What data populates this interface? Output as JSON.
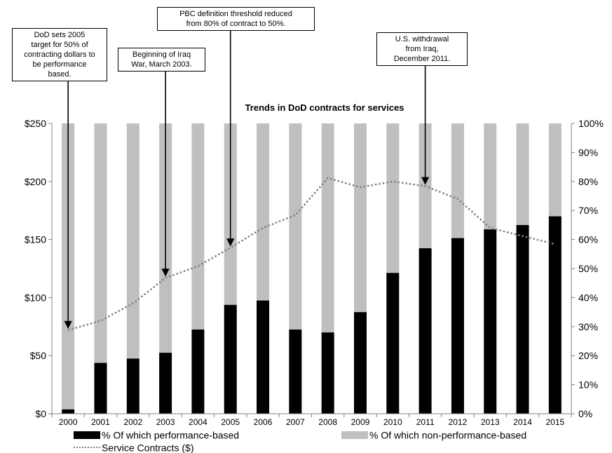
{
  "chart_data": {
    "type": "bar",
    "title": "Trends in DoD contracts for services",
    "categories": [
      "2000",
      "2001",
      "2002",
      "2003",
      "2004",
      "2005",
      "2006",
      "2007",
      "2008",
      "2009",
      "2010",
      "2011",
      "2012",
      "2013",
      "2014",
      "2015"
    ],
    "stacked_percent": true,
    "series": [
      {
        "name": "% Of which performance-based",
        "axis": "right",
        "color": "#000000",
        "values": [
          1.5,
          17.5,
          19,
          21,
          29,
          37.5,
          39,
          29,
          28,
          35,
          48.5,
          57,
          60.5,
          63.5,
          65,
          68
        ]
      },
      {
        "name": "% Of which non-performance-based",
        "axis": "right",
        "color": "#bfbfbf",
        "values": [
          98.5,
          82.5,
          81,
          79,
          71,
          62.5,
          61,
          71,
          72,
          65,
          51.5,
          43,
          39.5,
          36.5,
          35,
          32
        ]
      },
      {
        "name": "Service Contracts ($)",
        "axis": "left",
        "type": "line",
        "style": "dotted",
        "color": "#808080",
        "values": [
          72,
          80,
          95,
          117,
          127,
          143,
          160,
          171,
          203,
          195,
          200,
          196,
          185,
          160,
          153,
          146
        ]
      }
    ],
    "yaxis_left": {
      "ticks": [
        "$0",
        "$50",
        "$100",
        "$150",
        "$200",
        "$250"
      ],
      "range": [
        0,
        250
      ]
    },
    "yaxis_right": {
      "ticks": [
        "0%",
        "10%",
        "20%",
        "30%",
        "40%",
        "50%",
        "60%",
        "70%",
        "80%",
        "90%",
        "100%"
      ],
      "range": [
        0,
        100
      ]
    },
    "annotations": [
      {
        "text": "DoD sets 2005\ntarget for 50% of\ncontracting dollars to\nbe performance\nbased.",
        "year": "2000"
      },
      {
        "text": "Beginning of Iraq\nWar, March 2003.",
        "year": "2003"
      },
      {
        "text": "PBC definition threshold reduced\nfrom 80% of contract to 50%.",
        "year": "2005"
      },
      {
        "text": "U.S. withdrawal\nfrom Iraq,\nDecember 2011.",
        "year": "2011"
      }
    ],
    "legend_position": "bottom"
  }
}
